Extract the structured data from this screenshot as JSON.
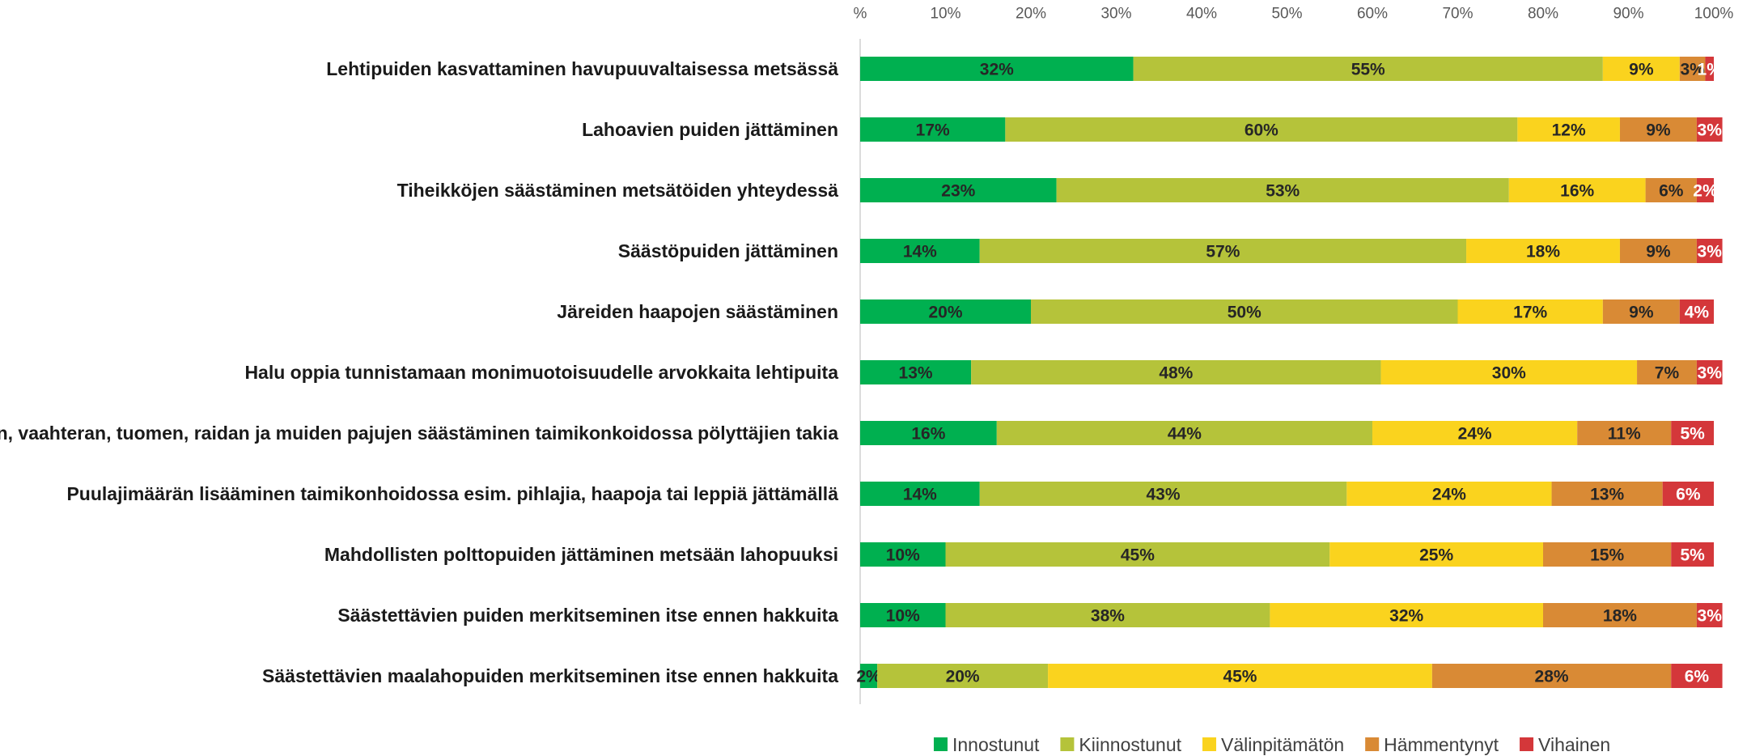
{
  "chart_data": {
    "type": "stacked_barh",
    "categories": [
      "Lehtipuiden kasvattaminen havupuuvaltaisessa metsässä",
      "Lahoavien puiden jättäminen",
      "Tiheikköjen säästäminen metsätöiden yhteydessä",
      "Säästöpuiden jättäminen",
      "Järeiden haapojen säästäminen",
      "Halu oppia tunnistamaan monimuotoisuudelle arvokkaita lehtipuita",
      "Pihlajan, vaahteran, tuomen, raidan ja muiden pajujen säästäminen taimikonkoidossa pölyttäjien takia",
      "Puulajimäärän lisääminen taimikonhoidossa esim. pihlajia, haapoja tai leppiä jättämällä",
      "Mahdollisten polttopuiden jättäminen metsään lahopuuksi",
      "Säästettävien puiden merkitseminen itse ennen hakkuita",
      "Säästettävien maalahopuiden merkitseminen itse ennen hakkuita"
    ],
    "series": [
      {
        "name": "Innostunut",
        "color": "#00b050",
        "values": [
          32,
          17,
          23,
          14,
          20,
          13,
          16,
          14,
          10,
          10,
          2
        ],
        "value_labels": [
          "32%",
          "17%",
          "23%",
          "14%",
          "20%",
          "13%",
          "16%",
          "14%",
          "10%",
          "10%",
          "2%"
        ]
      },
      {
        "name": "Kiinnostunut",
        "color": "#b5c33a",
        "values": [
          55,
          60,
          53,
          57,
          50,
          48,
          44,
          43,
          45,
          38,
          20
        ],
        "value_labels": [
          "55%",
          "60%",
          "53%",
          "57%",
          "50%",
          "48%",
          "44%",
          "43%",
          "45%",
          "38%",
          "20%"
        ]
      },
      {
        "name": "Välinpitämätön",
        "color": "#fad31e",
        "values": [
          9,
          12,
          16,
          18,
          17,
          30,
          24,
          24,
          25,
          32,
          45
        ],
        "value_labels": [
          "9%",
          "12%",
          "16%",
          "18%",
          "17%",
          "30%",
          "24%",
          "24%",
          "25%",
          "32%",
          "45%"
        ]
      },
      {
        "name": "Hämmentynyt",
        "color": "#d98a35",
        "values": [
          3,
          9,
          6,
          9,
          9,
          7,
          11,
          13,
          15,
          18,
          28
        ],
        "value_labels": [
          "3%",
          "9%",
          "6%",
          "9%",
          "9%",
          "7%",
          "11%",
          "13%",
          "15%",
          "18%",
          "28%"
        ]
      },
      {
        "name": "Vihainen",
        "color": "#d4373a",
        "values": [
          1,
          3,
          2,
          3,
          4,
          3,
          5,
          6,
          5,
          3,
          6
        ],
        "value_labels": [
          "1%",
          "3%",
          "2%",
          "3%",
          "4%",
          "3%",
          "5%",
          "6%",
          "5%",
          "3%",
          "6%"
        ]
      }
    ],
    "xlim": [
      0,
      100
    ],
    "xticks": [
      {
        "value": 0,
        "label": "%"
      },
      {
        "value": 10,
        "label": "10%"
      },
      {
        "value": 20,
        "label": "20%"
      },
      {
        "value": 30,
        "label": "30%"
      },
      {
        "value": 40,
        "label": "40%"
      },
      {
        "value": 50,
        "label": "50%"
      },
      {
        "value": 60,
        "label": "60%"
      },
      {
        "value": 70,
        "label": "70%"
      },
      {
        "value": 80,
        "label": "80%"
      },
      {
        "value": 90,
        "label": "90%"
      },
      {
        "value": 100,
        "label": "100%"
      }
    ],
    "legend": "bottom"
  }
}
